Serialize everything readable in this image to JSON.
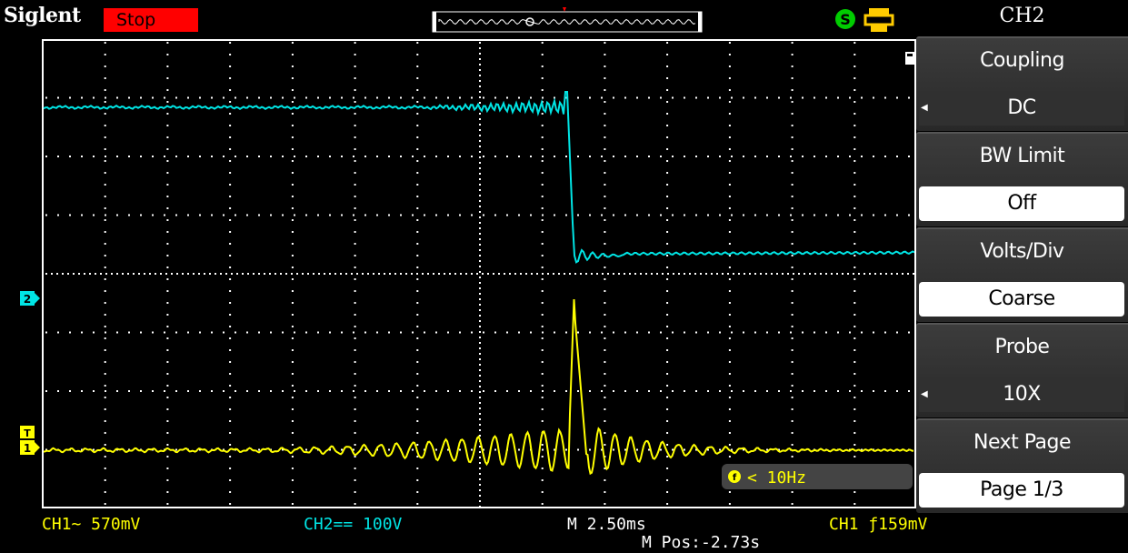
{
  "header": {
    "brand": "Siglent",
    "run_status": "Stop"
  },
  "colors": {
    "ch1": "#ffff00",
    "ch2": "#00ffff",
    "stop_bg": "#ff0000",
    "grid": "#ffffff"
  },
  "icons": [
    "timebase-memory-indicator",
    "trigger-position-marker",
    "s-status-icon",
    "usb-printer-icon",
    "trigger-level-t-icon"
  ],
  "screen": {
    "ch2_marker": "2",
    "ch1_marker": "1",
    "trigger_marker": "T",
    "freq_readout": "< 10Hz"
  },
  "menu": {
    "title": "CH2",
    "items": [
      {
        "label": "Coupling",
        "value": "DC"
      },
      {
        "label": "BW Limit",
        "value": "Off"
      },
      {
        "label": "Volts/Div",
        "value": "Coarse"
      },
      {
        "label": "Probe",
        "value": "10X"
      },
      {
        "label": "Next Page",
        "value": "Page 1/3"
      }
    ]
  },
  "status": {
    "ch1": "CH1~ 570mV",
    "ch2": "CH2== 100V",
    "timebase": "M 2.50ms",
    "trigger": "CH1 ƒ159mV",
    "position": "M Pos:-2.73s"
  }
}
